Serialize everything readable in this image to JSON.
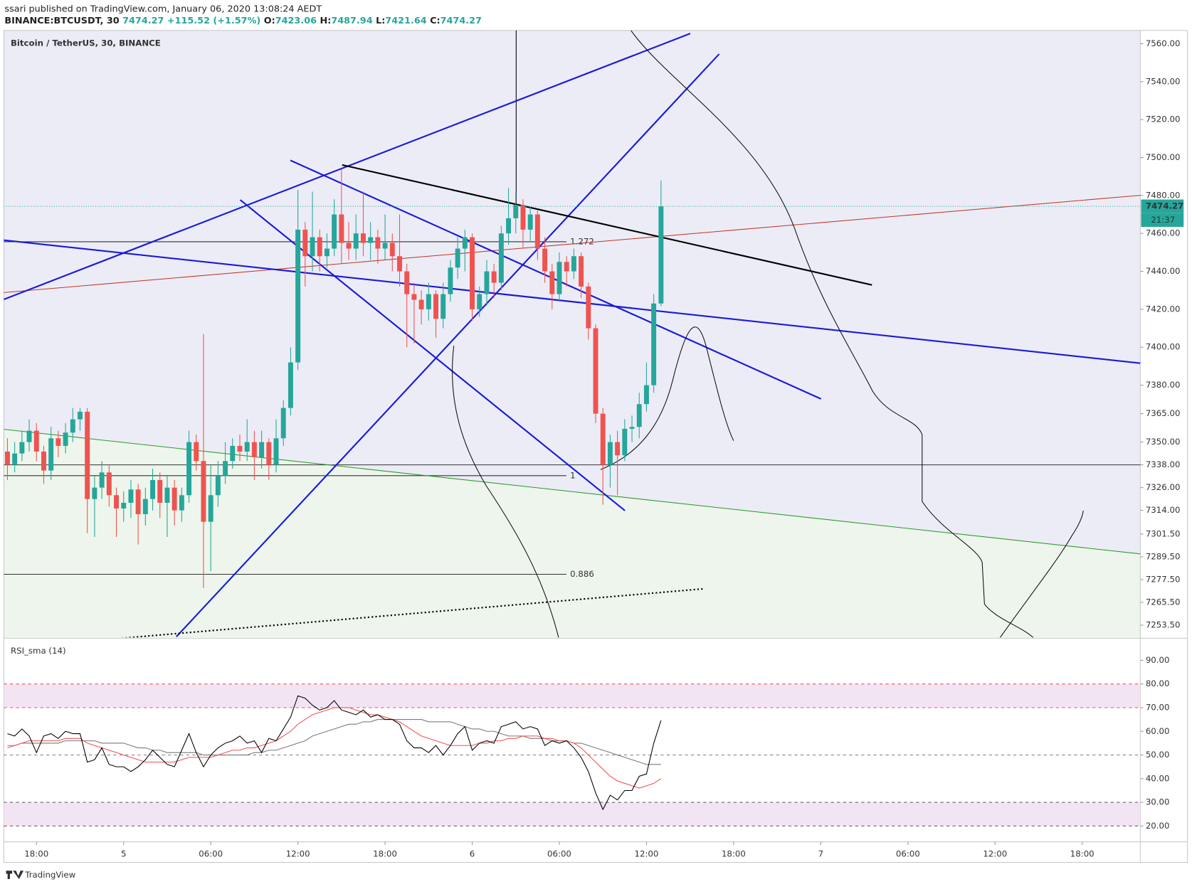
{
  "header": {
    "author_line": "ssari published on TradingView.com, January 06, 2020 13:08:24 AEDT",
    "symbol": "BINANCE:BTCUSDT, 30",
    "change": "+115.52 (+1.57%)",
    "ohlc_labels": [
      "O:",
      "H:",
      "L:",
      "C:"
    ]
  },
  "footer": {
    "brand": "TradingView"
  },
  "chart_data": [
    {
      "type": "candlestick",
      "title": "Bitcoin / TetherUS, 30, BINANCE",
      "colors": {
        "up": "#26a69a",
        "down": "#ef5350"
      },
      "countdown": "21:37",
      "xlim": [
        -0.5,
        156
      ],
      "xticks": [
        {
          "value": 4,
          "label": "18:00"
        },
        {
          "value": 16,
          "label": "5"
        },
        {
          "value": 28,
          "label": "06:00"
        },
        {
          "value": 40,
          "label": "12:00"
        },
        {
          "value": 52,
          "label": "18:00"
        },
        {
          "value": 64,
          "label": "6"
        },
        {
          "value": 76,
          "label": "06:00"
        },
        {
          "value": 88,
          "label": "12:00"
        },
        {
          "value": 100,
          "label": "18:00"
        },
        {
          "value": 112,
          "label": "7"
        },
        {
          "value": 124,
          "label": "06:00"
        },
        {
          "value": 136,
          "label": "12:00"
        },
        {
          "value": 148,
          "label": "18:00"
        }
      ],
      "ylim": [
        7247,
        7567
      ],
      "yticks": [
        {
          "value": 7560,
          "label": "7560.00"
        },
        {
          "value": 7540,
          "label": "7540.00"
        },
        {
          "value": 7520,
          "label": "7520.00"
        },
        {
          "value": 7500,
          "label": "7500.00"
        },
        {
          "value": 7480,
          "label": "7480.00"
        },
        {
          "value": 7460,
          "label": "7460.00"
        },
        {
          "value": 7440,
          "label": "7440.00"
        },
        {
          "value": 7420,
          "label": "7420.00"
        },
        {
          "value": 7400,
          "label": "7400.00"
        },
        {
          "value": 7380,
          "label": "7380.00"
        },
        {
          "value": 7365,
          "label": "7365.00"
        },
        {
          "value": 7350,
          "label": "7350.00"
        },
        {
          "value": 7338,
          "label": "7338.00"
        },
        {
          "value": 7326,
          "label": "7326.00"
        },
        {
          "value": 7314,
          "label": "7314.00"
        },
        {
          "value": 7301.5,
          "label": "7301.50"
        },
        {
          "value": 7289.5,
          "label": "7289.50"
        },
        {
          "value": 7277.5,
          "label": "7277.50"
        },
        {
          "value": 7265.5,
          "label": "7265.50"
        },
        {
          "value": 7253.5,
          "label": "7253.50"
        }
      ],
      "hline": 7338,
      "fib_levels": [
        {
          "label": "1.272",
          "value": 7455.6
        },
        {
          "label": "1",
          "value": 7332.3
        },
        {
          "label": "0.886",
          "value": 7280.3
        }
      ],
      "open": [
        7345,
        7338,
        7344,
        7350,
        7356,
        7345,
        7335,
        7352,
        7348,
        7355,
        7362,
        7366,
        7320,
        7326,
        7334,
        7322,
        7315,
        7318,
        7325,
        7312,
        7320,
        7330,
        7318,
        7326,
        7314,
        7322,
        7350,
        7340,
        7308,
        7322,
        7332,
        7340,
        7348,
        7345,
        7350,
        7342,
        7350,
        7338,
        7352,
        7368,
        7392,
        7462,
        7448,
        7458,
        7448,
        7452,
        7470,
        7455,
        7452,
        7460,
        7455,
        7458,
        7452,
        7455,
        7448,
        7440,
        7428,
        7425,
        7420,
        7428,
        7415,
        7428,
        7442,
        7452,
        7458,
        7420,
        7428,
        7440,
        7434,
        7460,
        7468,
        7475,
        7462,
        7470,
        7452,
        7440,
        7428,
        7445,
        7440,
        7448,
        7432,
        7410,
        7365,
        7338,
        7350,
        7343,
        7357,
        7358,
        7370,
        7380,
        7423.06
      ],
      "high": [
        7352,
        7350,
        7356,
        7362,
        7360,
        7348,
        7358,
        7356,
        7360,
        7368,
        7368,
        7368,
        7332,
        7340,
        7338,
        7326,
        7324,
        7330,
        7328,
        7326,
        7336,
        7334,
        7332,
        7330,
        7326,
        7356,
        7354,
        7407,
        7338,
        7340,
        7350,
        7352,
        7354,
        7362,
        7356,
        7356,
        7352,
        7362,
        7372,
        7400,
        7483,
        7466,
        7482,
        7462,
        7460,
        7478,
        7494,
        7466,
        7470,
        7482,
        7466,
        7462,
        7470,
        7460,
        7470,
        7444,
        7434,
        7430,
        7434,
        7430,
        7434,
        7446,
        7458,
        7462,
        7460,
        7432,
        7446,
        7444,
        7464,
        7484,
        7482,
        7478,
        7474,
        7472,
        7458,
        7444,
        7450,
        7448,
        7452,
        7450,
        7434,
        7412,
        7368,
        7354,
        7356,
        7362,
        7364,
        7376,
        7392,
        7428,
        7487.94
      ],
      "low": [
        7330,
        7334,
        7340,
        7345,
        7340,
        7328,
        7330,
        7342,
        7344,
        7350,
        7356,
        7302,
        7300,
        7320,
        7316,
        7300,
        7308,
        7310,
        7296,
        7306,
        7314,
        7310,
        7300,
        7306,
        7308,
        7318,
        7335,
        7273,
        7282,
        7316,
        7328,
        7336,
        7340,
        7340,
        7330,
        7336,
        7330,
        7334,
        7348,
        7364,
        7388,
        7432,
        7440,
        7440,
        7442,
        7448,
        7444,
        7446,
        7446,
        7448,
        7446,
        7444,
        7446,
        7440,
        7432,
        7400,
        7402,
        7412,
        7414,
        7405,
        7410,
        7424,
        7436,
        7440,
        7414,
        7416,
        7422,
        7426,
        7430,
        7454,
        7460,
        7452,
        7456,
        7446,
        7434,
        7420,
        7424,
        7432,
        7436,
        7426,
        7404,
        7360,
        7317,
        7326,
        7322,
        7340,
        7350,
        7352,
        7366,
        7376,
        7421.64
      ],
      "close": [
        7338,
        7344,
        7350,
        7356,
        7345,
        7335,
        7352,
        7348,
        7355,
        7362,
        7366,
        7320,
        7326,
        7334,
        7322,
        7315,
        7318,
        7325,
        7312,
        7320,
        7330,
        7318,
        7326,
        7314,
        7322,
        7350,
        7340,
        7308,
        7322,
        7332,
        7340,
        7348,
        7345,
        7350,
        7342,
        7350,
        7338,
        7352,
        7368,
        7392,
        7462,
        7448,
        7458,
        7448,
        7452,
        7470,
        7455,
        7452,
        7460,
        7455,
        7458,
        7452,
        7455,
        7448,
        7440,
        7428,
        7425,
        7420,
        7428,
        7415,
        7428,
        7442,
        7452,
        7458,
        7420,
        7428,
        7440,
        7434,
        7460,
        7468,
        7475,
        7462,
        7470,
        7452,
        7440,
        7428,
        7445,
        7440,
        7448,
        7432,
        7410,
        7365,
        7338,
        7350,
        7343,
        7357,
        7358,
        7370,
        7380,
        7423.06,
        7474.27
      ]
    },
    {
      "type": "line",
      "title": "RSI_sma (14)",
      "ylim": [
        13.3,
        99
      ],
      "yticks": [
        {
          "value": 90,
          "label": "90.00"
        },
        {
          "value": 80,
          "label": "80.00"
        },
        {
          "value": 70,
          "label": "70.00"
        },
        {
          "value": 60,
          "label": "60.00"
        },
        {
          "value": 50,
          "label": "50.00"
        },
        {
          "value": 40,
          "label": "40.00"
        },
        {
          "value": 30,
          "label": "30.00"
        },
        {
          "value": 20,
          "label": "20.00"
        }
      ],
      "bands": [
        {
          "from": 70,
          "to": 80,
          "color": "#f3e4f4"
        },
        {
          "from": 20,
          "to": 30,
          "color": "#f3e4f4"
        }
      ],
      "hlines": [
        {
          "value": 80,
          "color": "#ef5350"
        },
        {
          "value": 70,
          "color": "#ef5350"
        },
        {
          "value": 50,
          "color": "#888888"
        },
        {
          "value": 30,
          "color": "#555555"
        },
        {
          "value": 20,
          "color": "#555555"
        }
      ],
      "series": [
        {
          "color": "#000000",
          "values": [
            59,
            58,
            61,
            58,
            51,
            58,
            59,
            57,
            60,
            59,
            59,
            47,
            48,
            53,
            46,
            45,
            45,
            43,
            45,
            48,
            52,
            49,
            46,
            45,
            52,
            59,
            51,
            45,
            50,
            53,
            55,
            56,
            58,
            55,
            56,
            51,
            57,
            56,
            61,
            66,
            75,
            74,
            71,
            69,
            70,
            73,
            69,
            68,
            67,
            69,
            66,
            67,
            65,
            65,
            63,
            56,
            53,
            53,
            51,
            54,
            50,
            54,
            59,
            62,
            52,
            55,
            56,
            55,
            62,
            63,
            64,
            61,
            62,
            61,
            54,
            56,
            55,
            56,
            53,
            49,
            43,
            34,
            27,
            33,
            31,
            35,
            35,
            41,
            42,
            55,
            64.6
          ]
        },
        {
          "color": "#ef5350",
          "values": [
            53,
            54,
            55,
            56,
            56,
            56,
            56,
            56,
            57,
            57,
            57,
            55,
            54,
            53,
            52,
            51,
            50,
            49,
            48,
            47,
            47,
            47,
            47,
            47,
            48,
            49,
            49,
            49,
            49,
            50,
            51,
            52,
            52,
            53,
            53,
            54,
            55,
            56,
            58,
            60,
            63,
            65,
            67,
            68,
            69,
            70,
            70,
            70,
            69,
            68,
            67,
            67,
            66,
            65,
            64,
            62,
            60,
            58,
            57,
            56,
            55,
            54,
            54,
            54,
            54,
            55,
            55,
            56,
            56,
            57,
            57,
            58,
            58,
            58,
            57,
            57,
            56,
            56,
            55,
            53,
            50,
            47,
            44,
            41,
            39,
            38,
            37,
            36,
            37,
            38,
            40
          ]
        },
        {
          "color": "#7a7a7a",
          "values": [
            54,
            54,
            55,
            55,
            55,
            55,
            55,
            55,
            56,
            56,
            56,
            56,
            56,
            55,
            55,
            55,
            55,
            54,
            53,
            53,
            52,
            52,
            51,
            51,
            51,
            51,
            51,
            50,
            50,
            50,
            50,
            50,
            50,
            50,
            51,
            51,
            52,
            52,
            53,
            54,
            55,
            56,
            58,
            59,
            60,
            61,
            62,
            63,
            63,
            64,
            64,
            65,
            65,
            65,
            65,
            65,
            65,
            65,
            64,
            64,
            64,
            64,
            63,
            62,
            61,
            61,
            60,
            60,
            59,
            58,
            58,
            58,
            57,
            57,
            57,
            56,
            56,
            56,
            55,
            55,
            54,
            53,
            52,
            51,
            50,
            49,
            48,
            47,
            46,
            46,
            46
          ]
        }
      ]
    }
  ]
}
